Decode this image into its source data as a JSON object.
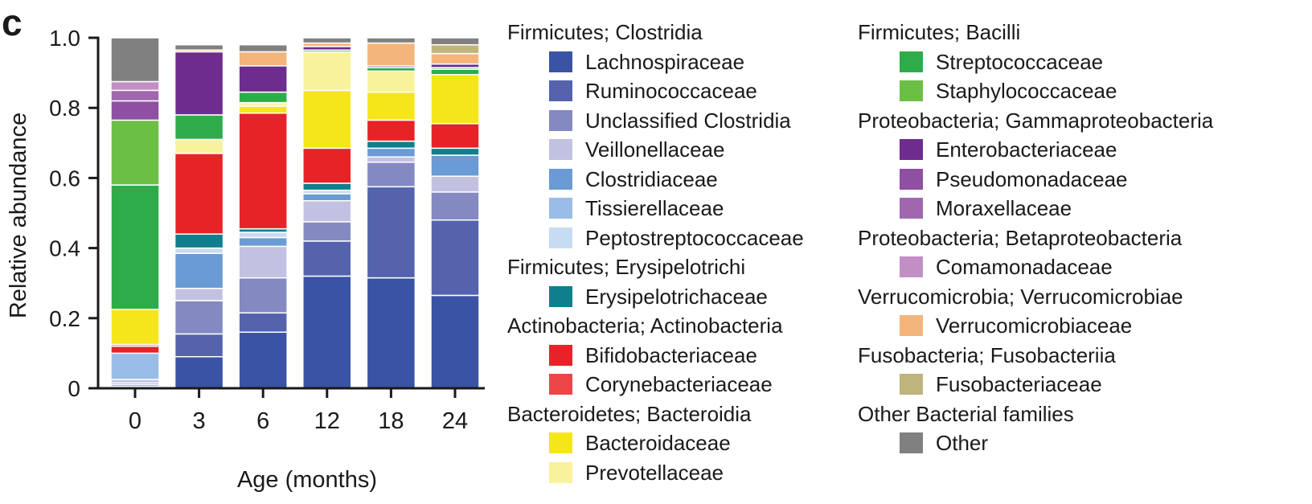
{
  "panel_label": "c",
  "chart_data": {
    "type": "bar",
    "stacked": true,
    "ylabel": "Relative abundance",
    "xlabel": "Age (months)",
    "ylim": [
      0,
      1.0
    ],
    "yticks": [
      "0",
      "0.2",
      "0.4",
      "0.6",
      "0.8",
      "1.0"
    ],
    "categories": [
      "0",
      "3",
      "6",
      "12",
      "18",
      "24"
    ],
    "legend_position": "right",
    "groups": [
      {
        "title": "Firmicutes; Clostridia",
        "families": [
          "Lachnospiraceae",
          "Ruminococcaceae",
          "Unclassified Clostridia",
          "Veillonellaceae",
          "Clostridiaceae",
          "Tissierellaceae",
          "Peptostreptococcaceae"
        ]
      },
      {
        "title": "Firmicutes; Erysipelotrichi",
        "families": [
          "Erysipelotrichaceae"
        ]
      },
      {
        "title": "Actinobacteria; Actinobacteria",
        "families": [
          "Bifidobacteriaceae",
          "Corynebacteriaceae"
        ]
      },
      {
        "title": "Bacteroidetes; Bacteroidia",
        "families": [
          "Bacteroidaceae",
          "Prevotellaceae"
        ]
      },
      {
        "title": "Firmicutes; Bacilli",
        "families": [
          "Streptococcaceae",
          "Staphylococcaceae"
        ]
      },
      {
        "title": "Proteobacteria; Gammaproteobacteria",
        "families": [
          "Enterobacteriaceae",
          "Pseudomonadaceae",
          "Moraxellaceae"
        ]
      },
      {
        "title": "Proteobacteria; Betaproteobacteria",
        "families": [
          "Comamonadaceae"
        ]
      },
      {
        "title": "Verrucomicrobia; Verrucomicrobiae",
        "families": [
          "Verrucomicrobiaceae"
        ]
      },
      {
        "title": "Fusobacteria; Fusobacteriia",
        "families": [
          "Fusobacteriaceae"
        ]
      },
      {
        "title": "Other Bacterial families",
        "families": [
          "Other"
        ]
      }
    ],
    "series": [
      {
        "name": "Lachnospiraceae",
        "color": "#3a53a4",
        "values": [
          0.005,
          0.09,
          0.16,
          0.32,
          0.315,
          0.265
        ]
      },
      {
        "name": "Ruminococcaceae",
        "color": "#5563ad",
        "values": [
          0.005,
          0.065,
          0.055,
          0.1,
          0.26,
          0.215
        ]
      },
      {
        "name": "Unclassified Clostridia",
        "color": "#8489c2",
        "values": [
          0.005,
          0.095,
          0.1,
          0.055,
          0.07,
          0.08
        ]
      },
      {
        "name": "Veillonellaceae",
        "color": "#c3c1e2",
        "values": [
          0.01,
          0.035,
          0.09,
          0.06,
          0.015,
          0.045
        ]
      },
      {
        "name": "Clostridiaceae",
        "color": "#6a9bd4",
        "values": [
          0.0,
          0.1,
          0.025,
          0.02,
          0.025,
          0.06
        ]
      },
      {
        "name": "Tissierellaceae",
        "color": "#99bde6",
        "values": [
          0.075,
          0.0,
          0.0,
          0.0,
          0.0,
          0.0
        ]
      },
      {
        "name": "Peptostreptococcaceae",
        "color": "#c6dcf2",
        "values": [
          0.0,
          0.015,
          0.015,
          0.01,
          0.0,
          0.0
        ]
      },
      {
        "name": "Erysipelotrichaceae",
        "color": "#0e7f8d",
        "values": [
          0.0,
          0.04,
          0.01,
          0.02,
          0.02,
          0.02
        ]
      },
      {
        "name": "Bifidobacteriaceae",
        "color": "#e72327",
        "values": [
          0.02,
          0.23,
          0.33,
          0.1,
          0.06,
          0.07
        ]
      },
      {
        "name": "Corynebacteriaceae",
        "color": "#ee4547",
        "values": [
          0.005,
          0.0,
          0.0,
          0.0,
          0.0,
          0.0
        ]
      },
      {
        "name": "Bacteroidaceae",
        "color": "#f4e61a",
        "values": [
          0.1,
          0.0,
          0.02,
          0.165,
          0.08,
          0.14
        ]
      },
      {
        "name": "Prevotellaceae",
        "color": "#f8f29c",
        "values": [
          0.0,
          0.04,
          0.01,
          0.11,
          0.06,
          0.0
        ]
      },
      {
        "name": "Streptococcaceae",
        "color": "#2eac4a",
        "values": [
          0.355,
          0.07,
          0.03,
          0.005,
          0.01,
          0.015
        ]
      },
      {
        "name": "Staphylococcaceae",
        "color": "#6bbf45",
        "values": [
          0.185,
          0.0,
          0.0,
          0.0,
          0.0,
          0.005
        ]
      },
      {
        "name": "Enterobacteriaceae",
        "color": "#6e2c8e",
        "values": [
          0.0,
          0.18,
          0.075,
          0.01,
          0.005,
          0.01
        ]
      },
      {
        "name": "Pseudomonadaceae",
        "color": "#8f4fa2",
        "values": [
          0.055,
          0.0,
          0.0,
          0.0,
          0.0,
          0.0
        ]
      },
      {
        "name": "Moraxellaceae",
        "color": "#a066ae",
        "values": [
          0.03,
          0.0,
          0.0,
          0.0,
          0.0,
          0.0
        ]
      },
      {
        "name": "Comamonadaceae",
        "color": "#c28fc5",
        "values": [
          0.025,
          0.0,
          0.0,
          0.0,
          0.0,
          0.0
        ]
      },
      {
        "name": "Verrucomicrobiaceae",
        "color": "#f3b57b",
        "values": [
          0.0,
          0.005,
          0.04,
          0.01,
          0.065,
          0.03
        ]
      },
      {
        "name": "Fusobacteriaceae",
        "color": "#bfb57c",
        "values": [
          0.0,
          0.0,
          0.0,
          0.0,
          0.0,
          0.025
        ]
      },
      {
        "name": "Other",
        "color": "#808080",
        "values": [
          0.125,
          0.015,
          0.02,
          0.015,
          0.015,
          0.02
        ]
      }
    ]
  }
}
